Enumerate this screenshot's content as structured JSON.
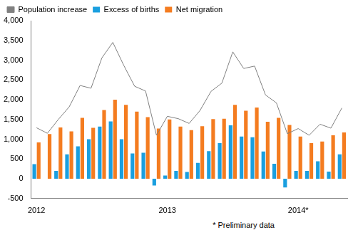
{
  "chart_data": {
    "type": "bar",
    "categories": [
      "2012",
      null,
      null,
      null,
      null,
      null,
      null,
      null,
      null,
      null,
      null,
      null,
      "2013",
      null,
      null,
      null,
      null,
      null,
      null,
      null,
      null,
      null,
      null,
      null,
      "2014*",
      null,
      null,
      null,
      null
    ],
    "series": [
      {
        "name": "Excess of births",
        "color": "#1a9fdf",
        "type": "bar",
        "values": [
          370,
          0,
          200,
          620,
          820,
          1000,
          1320,
          1450,
          1000,
          640,
          660,
          -170,
          80,
          200,
          170,
          400,
          700,
          900,
          1350,
          1070,
          1050,
          690,
          380,
          -220,
          200,
          200,
          440,
          180,
          620
        ]
      },
      {
        "name": "Net migration",
        "color": "#f47c20",
        "type": "bar",
        "values": [
          920,
          1130,
          1300,
          1200,
          1540,
          1290,
          1740,
          2000,
          1870,
          1700,
          1560,
          1270,
          1500,
          1320,
          1230,
          1330,
          1510,
          1520,
          1870,
          1720,
          1800,
          1440,
          1540,
          1360,
          1070,
          900,
          940,
          1100,
          1170
        ]
      },
      {
        "name": "Population increase",
        "color": "#808080",
        "type": "line",
        "values": [
          1290,
          1150,
          1500,
          1820,
          2360,
          2290,
          3060,
          3450,
          2870,
          2340,
          2220,
          1100,
          1580,
          1520,
          1400,
          1730,
          2210,
          2420,
          3210,
          2790,
          2850,
          2120,
          1920,
          1140,
          1270,
          1100,
          1380,
          1280,
          1790
        ]
      }
    ],
    "ylim": [
      -500,
      4000
    ],
    "yticks": [
      -500,
      0,
      500,
      1000,
      1500,
      2000,
      2500,
      3000,
      3500,
      4000
    ],
    "grid": false,
    "legend": "top",
    "annotations": [
      "* Preliminary data"
    ]
  }
}
